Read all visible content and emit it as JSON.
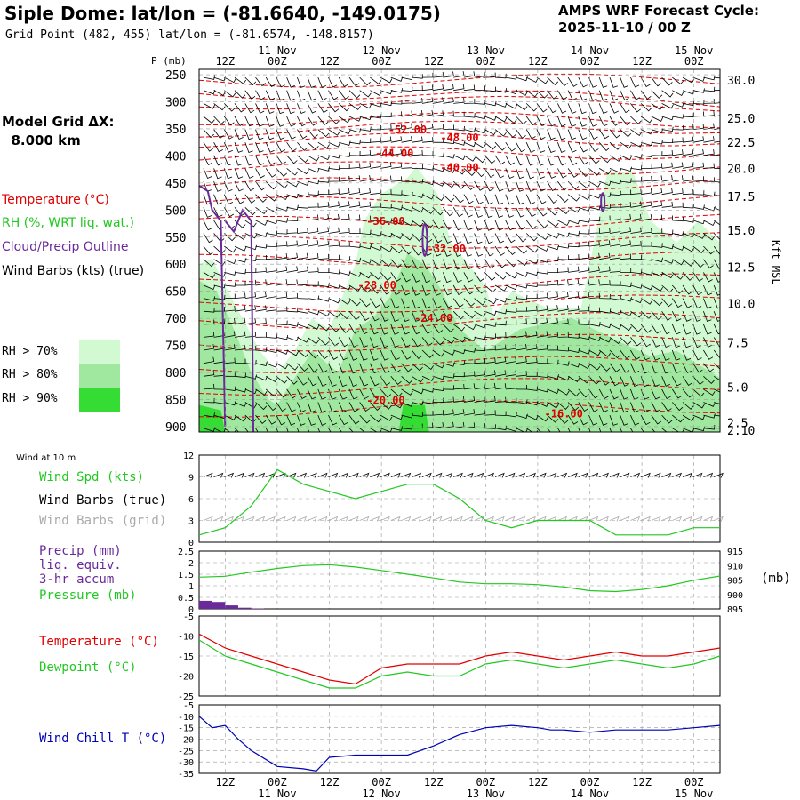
{
  "header": {
    "title": "Siple Dome:  lat/lon = (-81.6640, -149.0175)",
    "subtitle": "Grid Point (482, 455) lat/lon = (-81.6574, -148.8157)",
    "cycle_line1": "AMPS WRF Forecast Cycle:",
    "cycle_line2": "2025-11-10 / 00  Z",
    "grid_line1": "Model Grid ΔX:",
    "grid_line2": "  8.000 km"
  },
  "legend": {
    "temperature": "Temperature (°C)",
    "rh": "RH (%, WRT liq. wat.)",
    "cloud": "Cloud/Precip Outline",
    "barbs": "Wind Barbs (kts) (true)",
    "rh70": "RH > 70%",
    "rh80": "RH > 80%",
    "rh90": "RH > 90%",
    "wind10m": "Wind at 10 m",
    "wind_spd": "Wind Spd (kts)",
    "wind_true": "Wind Barbs (true)",
    "wind_grid": "Wind Barbs (grid)",
    "precip1": "Precip (mm)",
    "precip2": "liq. equiv.",
    "precip3": "3-hr accum",
    "pressure": "Pressure (mb)",
    "pressure_unit": "(mb)",
    "temp": "Temperature (°C)",
    "dew": "Dewpoint (°C)",
    "windchill": "Wind Chill T (°C)",
    "p_axis": "P (mb)",
    "kft": "Kft MSL"
  },
  "colors": {
    "temp": "#e00000",
    "rh": "#22c822",
    "cloud": "#6a2a9a",
    "wind": "#000000",
    "grid": "#aaaaaa",
    "windchill": "#0000b4",
    "rh70": "#d2fad2",
    "rh80": "#a0e8a0",
    "rh90": "#34dc34"
  },
  "chart_data": [
    {
      "type": "heatmap",
      "name": "upper-air-cross-section",
      "x_hours": [
        0,
        120
      ],
      "y_pressure_range": [
        910,
        240
      ],
      "time_ticks_top": [
        {
          "h": 6,
          "lbl": "12Z",
          "day": ""
        },
        {
          "h": 18,
          "lbl": "00Z",
          "day": "11 Nov"
        },
        {
          "h": 30,
          "lbl": "12Z",
          "day": ""
        },
        {
          "h": 42,
          "lbl": "00Z",
          "day": "12 Nov"
        },
        {
          "h": 54,
          "lbl": "12Z",
          "day": ""
        },
        {
          "h": 66,
          "lbl": "00Z",
          "day": "13 Nov"
        },
        {
          "h": 78,
          "lbl": "12Z",
          "day": ""
        },
        {
          "h": 90,
          "lbl": "00Z",
          "day": "14 Nov"
        },
        {
          "h": 102,
          "lbl": "12Z",
          "day": ""
        },
        {
          "h": 114,
          "lbl": "00Z",
          "day": "15 Nov"
        }
      ],
      "pressure_ticks": [
        250,
        300,
        350,
        400,
        450,
        500,
        550,
        600,
        650,
        700,
        750,
        800,
        850,
        900
      ],
      "height_ticks": [
        {
          "p": 260,
          "lbl": "30.0"
        },
        {
          "p": 330,
          "lbl": "25.0"
        },
        {
          "p": 375,
          "lbl": "22.5"
        },
        {
          "p": 423,
          "lbl": "20.0"
        },
        {
          "p": 475,
          "lbl": "17.5"
        },
        {
          "p": 537,
          "lbl": "15.0"
        },
        {
          "p": 605,
          "lbl": "12.5"
        },
        {
          "p": 673,
          "lbl": "10.0"
        },
        {
          "p": 745,
          "lbl": "7.5"
        },
        {
          "p": 827,
          "lbl": "5.0"
        },
        {
          "p": 893,
          "lbl": "2.5"
        },
        {
          "p": 907,
          "lbl": "2.10"
        }
      ],
      "temp_labels": [
        {
          "v": "-52.00",
          "h": 48,
          "p": 358
        },
        {
          "v": "-48.00",
          "h": 60,
          "p": 373
        },
        {
          "v": "-44.00",
          "h": 45,
          "p": 402
        },
        {
          "v": "-40.00",
          "h": 60,
          "p": 428
        },
        {
          "v": "-36.00",
          "h": 43,
          "p": 527
        },
        {
          "v": "-32.00",
          "h": 57,
          "p": 578
        },
        {
          "v": "-28.00",
          "h": 41,
          "p": 646
        },
        {
          "v": "-24.00",
          "h": 54,
          "p": 706
        },
        {
          "v": "-20.00",
          "h": 43,
          "p": 858
        },
        {
          "v": "-16.00",
          "h": 84,
          "p": 883
        }
      ]
    },
    {
      "type": "line",
      "name": "wind-speed-10m",
      "ylim": [
        0,
        12
      ],
      "yticks": [
        0,
        3,
        6,
        9,
        12
      ],
      "x": [
        0,
        6,
        12,
        18,
        24,
        30,
        36,
        42,
        48,
        54,
        60,
        66,
        72,
        78,
        84,
        90,
        96,
        102,
        108,
        114,
        120
      ],
      "values": [
        1,
        2,
        5,
        10,
        8,
        7,
        6,
        7,
        8,
        8,
        6,
        3,
        2,
        3,
        3,
        3,
        1,
        1,
        1,
        2,
        2
      ]
    },
    {
      "type": "line",
      "name": "precip-pressure",
      "precip_ylim": [
        0,
        2.5
      ],
      "precip_yticks": [
        0,
        0.5,
        1.0,
        1.5,
        2.0,
        2.5
      ],
      "pressure_ylim": [
        895,
        915
      ],
      "pressure_yticks": [
        895,
        900,
        905,
        910,
        915
      ],
      "precip_bars": [
        {
          "h": 0,
          "v": 0.35
        },
        {
          "h": 3,
          "v": 0.3
        },
        {
          "h": 6,
          "v": 0.15
        },
        {
          "h": 9,
          "v": 0.05
        },
        {
          "h": 12,
          "v": 0.02
        }
      ],
      "pressure": [
        906,
        906.3,
        907.7,
        909,
        910,
        910.3,
        909.5,
        908.3,
        907,
        905.7,
        904.3,
        903.7,
        903.7,
        903.4,
        902.6,
        901.3,
        901,
        901.7,
        903,
        904.9,
        906.4
      ]
    },
    {
      "type": "line",
      "name": "temperature-dewpoint",
      "ylim": [
        -25,
        -5
      ],
      "yticks": [
        -5,
        -10,
        -15,
        -20,
        -25
      ],
      "x": [
        0,
        6,
        12,
        18,
        24,
        30,
        36,
        42,
        48,
        54,
        60,
        66,
        72,
        78,
        84,
        90,
        96,
        102,
        108,
        114,
        120
      ],
      "temp": [
        -9.5,
        -13,
        -15,
        -17,
        -19,
        -21,
        -22,
        -18,
        -17,
        -17,
        -17,
        -15,
        -14,
        -15,
        -16,
        -15,
        -14,
        -15,
        -15,
        -14,
        -13
      ],
      "dewpoint": [
        -11,
        -15,
        -17,
        -19,
        -21,
        -23,
        -23,
        -20,
        -19,
        -20,
        -20,
        -17,
        -16,
        -17,
        -18,
        -17,
        -16,
        -17,
        -18,
        -17,
        -15
      ],
      "labels": [
        "Temperature (°C)",
        "Dewpoint (°C)"
      ]
    },
    {
      "type": "line",
      "name": "wind-chill",
      "ylim": [
        -35,
        -5
      ],
      "yticks": [
        -5,
        -10,
        -15,
        -20,
        -25,
        -30,
        -35
      ],
      "x": [
        0,
        3,
        6,
        9,
        12,
        18,
        24,
        27,
        30,
        36,
        42,
        48,
        54,
        60,
        66,
        72,
        78,
        81,
        84,
        90,
        96,
        102,
        108,
        114,
        120
      ],
      "values": [
        -10,
        -15,
        -14,
        -20,
        -25,
        -32,
        -33,
        -34,
        -28,
        -27,
        -27,
        -27,
        -23,
        -18,
        -15,
        -14,
        -15,
        -16,
        -16,
        -17,
        -16,
        -16,
        -16,
        -15,
        -14
      ]
    }
  ],
  "bottom_axis": {
    "ticks": [
      "12Z",
      "00Z",
      "12Z",
      "00Z",
      "12Z",
      "00Z",
      "12Z",
      "00Z",
      "12Z",
      "00Z"
    ],
    "days": [
      "11 Nov",
      "12 Nov",
      "13 Nov",
      "14 Nov",
      "15 Nov"
    ]
  }
}
